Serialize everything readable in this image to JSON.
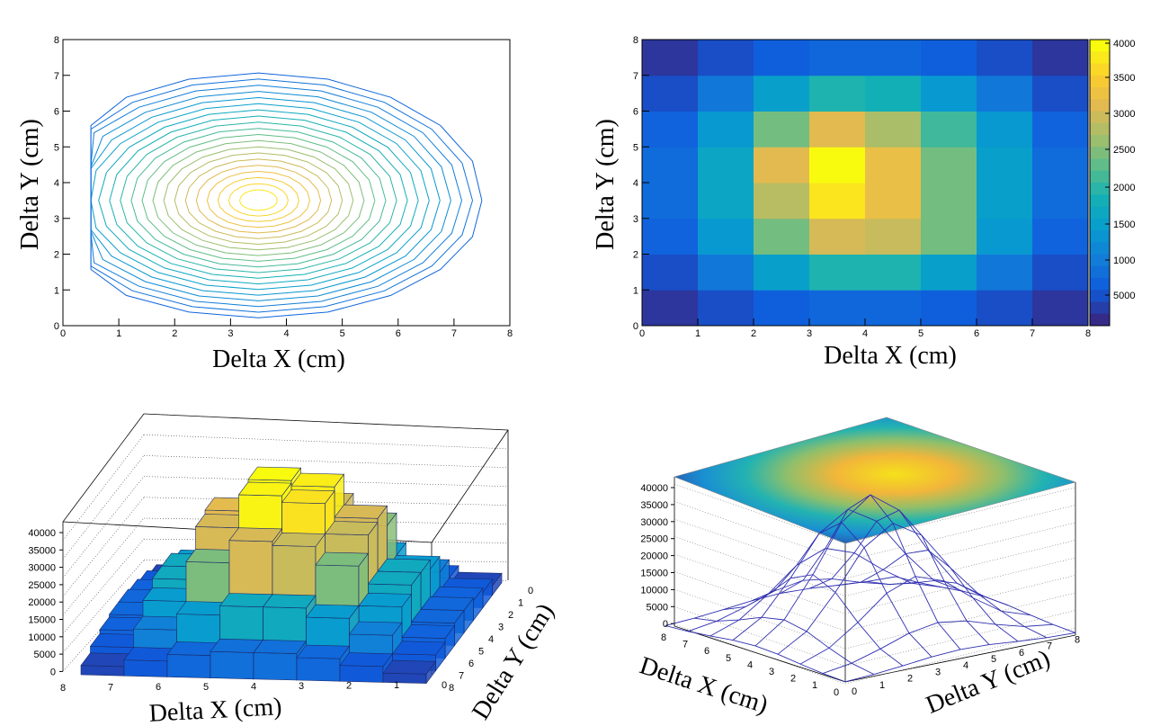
{
  "chart_data": [
    {
      "type": "contour",
      "xlabel": "Delta  X (cm)",
      "ylabel": "Delta  Y (cm)",
      "xlim": [
        0,
        8
      ],
      "ylim": [
        0,
        8
      ],
      "x_ticks": [
        "0",
        "1",
        "2",
        "3",
        "4",
        "5",
        "6",
        "7",
        "8"
      ],
      "y_ticks": [
        "0",
        "1",
        "2",
        "3",
        "4",
        "5",
        "6",
        "7",
        "8"
      ],
      "center": [
        3.5,
        3.5
      ],
      "levels": 20
    },
    {
      "type": "heatmap",
      "xlabel": "Delta  X (cm)",
      "ylabel": "Delta  Y (cm)",
      "xlim": [
        0,
        8
      ],
      "ylim": [
        0,
        8
      ],
      "x_ticks": [
        "0",
        "1",
        "2",
        "3",
        "4",
        "5",
        "6",
        "7",
        "8"
      ],
      "y_ticks": [
        "0",
        "1",
        "2",
        "3",
        "4",
        "5",
        "6",
        "7",
        "8"
      ],
      "colorbar_ticks": [
        "4000",
        "3500",
        "3000",
        "2500",
        "2000",
        "1500",
        "1000",
        "5000"
      ],
      "z_range": [
        300,
        4000
      ],
      "grid": [
        [
          400,
          600,
          750,
          850,
          850,
          750,
          600,
          400
        ],
        [
          600,
          1050,
          1600,
          2000,
          2000,
          1600,
          1050,
          600
        ],
        [
          800,
          1500,
          2500,
          3100,
          3000,
          2500,
          1500,
          800
        ],
        [
          900,
          1700,
          2900,
          3800,
          3300,
          2500,
          1600,
          900
        ],
        [
          900,
          1700,
          3200,
          4000,
          3300,
          2500,
          1600,
          900
        ],
        [
          800,
          1500,
          2500,
          3200,
          2800,
          2200,
          1500,
          800
        ],
        [
          600,
          1050,
          1600,
          2000,
          1900,
          1500,
          1050,
          600
        ],
        [
          400,
          600,
          750,
          850,
          850,
          750,
          600,
          400
        ]
      ]
    },
    {
      "type": "lego3d",
      "xlabel": "Delta  X (cm)",
      "ylabel": "Delta  Y (cm)",
      "z_ticks": [
        "40000",
        "35000",
        "30000",
        "25000",
        "20000",
        "15000",
        "10000",
        "5000",
        "0"
      ],
      "x_ticks": [
        "8",
        "7",
        "6",
        "5",
        "4",
        "3",
        "2",
        "1",
        "0"
      ],
      "y_ticks": [
        "0",
        "1",
        "2",
        "3",
        "4",
        "5",
        "6",
        "7",
        "8"
      ]
    },
    {
      "type": "surface3d",
      "xlabel": "Delta  X (cm)",
      "ylabel": "Delta  Y (cm)",
      "z_ticks": [
        "40000",
        "35000",
        "30000",
        "25000",
        "20000",
        "15000",
        "10000",
        "5000",
        "0"
      ],
      "x_ticks": [
        "8",
        "7",
        "6",
        "5",
        "4",
        "3",
        "2",
        "1",
        "0"
      ],
      "y_ticks": [
        "0",
        "1",
        "2",
        "3",
        "4",
        "5",
        "6",
        "7",
        "8"
      ]
    }
  ]
}
